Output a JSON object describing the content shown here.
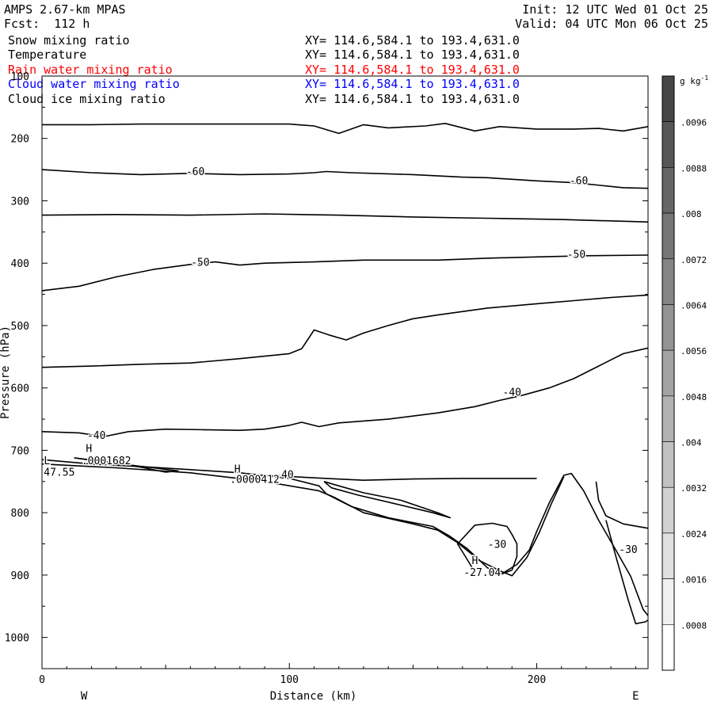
{
  "header": {
    "model": "AMPS 2.67-km MPAS",
    "forecast": "Fcst:  112 h",
    "init": "Init: 12 UTC Wed 01 Oct 25",
    "valid": "Valid: 04 UTC Mon 06 Oct 25"
  },
  "fields": [
    {
      "name": "Snow mixing ratio",
      "xy": "XY= 114.6,584.1 to 193.4,631.0",
      "color": "#000000"
    },
    {
      "name": "Temperature",
      "xy": "XY= 114.6,584.1 to 193.4,631.0",
      "color": "#000000"
    },
    {
      "name": "Rain water mixing ratio",
      "xy": "XY= 114.6,584.1 to 193.4,631.0",
      "color": "#ff0000"
    },
    {
      "name": "Cloud water mixing ratio",
      "xy": "XY= 114.6,584.1 to 193.4,631.0",
      "color": "#0000ff"
    },
    {
      "name": "Cloud ice mixing ratio",
      "xy": "XY= 114.6,584.1 to 193.4,631.0",
      "color": "#000000"
    }
  ],
  "chart_data": {
    "type": "cross-section contour",
    "xlabel": "Distance (km)",
    "ylabel": "Pressure (hPa)",
    "xlim": [
      0,
      245
    ],
    "ylim": [
      100,
      1050
    ],
    "x_ticks": [
      "0",
      "100",
      "200"
    ],
    "y_ticks": [
      "100",
      "200",
      "300",
      "400",
      "500",
      "600",
      "700",
      "800",
      "900",
      "1000"
    ],
    "x_tick_values": [
      0,
      100,
      200
    ],
    "y_tick_values": [
      100,
      200,
      300,
      400,
      500,
      600,
      700,
      800,
      900,
      1000
    ],
    "left_end_label": "W",
    "right_end_label": "E",
    "colorbar": {
      "unit": "g kg",
      "unit_exp": "-1",
      "labels": [
        ".0096",
        ".0088",
        ".008",
        ".0072",
        ".0064",
        ".0056",
        ".0048",
        ".004",
        ".0032",
        ".0024",
        ".0016",
        ".0008"
      ],
      "levels": [
        0.0096,
        0.0088,
        0.008,
        0.0072,
        0.0064,
        0.0056,
        0.0048,
        0.004,
        0.0032,
        0.0024,
        0.0016,
        0.0008
      ],
      "max": 0.0104
    },
    "temperature_contours": [
      {
        "id": "t-200",
        "points": [
          [
            0,
            178
          ],
          [
            20,
            178
          ],
          [
            40,
            177
          ],
          [
            60,
            177
          ],
          [
            80,
            177
          ],
          [
            100,
            177
          ],
          [
            110,
            180
          ],
          [
            120,
            192
          ],
          [
            130,
            178
          ],
          [
            140,
            183
          ],
          [
            155,
            180
          ],
          [
            163,
            176
          ],
          [
            175,
            188
          ],
          [
            185,
            181
          ],
          [
            200,
            185
          ],
          [
            215,
            185
          ],
          [
            225,
            184
          ],
          [
            235,
            188
          ],
          [
            245,
            181
          ]
        ]
      },
      {
        "id": "t-60",
        "points": [
          [
            0,
            250
          ],
          [
            20,
            255
          ],
          [
            40,
            258
          ],
          [
            60,
            256
          ],
          [
            80,
            258
          ],
          [
            100,
            257
          ],
          [
            110,
            255
          ],
          [
            115,
            253
          ],
          [
            125,
            255
          ],
          [
            150,
            258
          ],
          [
            170,
            262
          ],
          [
            180,
            263
          ],
          [
            200,
            268
          ],
          [
            215,
            271
          ],
          [
            235,
            279
          ],
          [
            245,
            280
          ]
        ]
      },
      {
        "id": "t-310",
        "points": [
          [
            0,
            323
          ],
          [
            30,
            322
          ],
          [
            60,
            323
          ],
          [
            90,
            321
          ],
          [
            120,
            323
          ],
          [
            150,
            326
          ],
          [
            180,
            328
          ],
          [
            210,
            330
          ],
          [
            245,
            334
          ]
        ]
      },
      {
        "id": "t-50",
        "points": [
          [
            0,
            444
          ],
          [
            15,
            437
          ],
          [
            30,
            422
          ],
          [
            45,
            410
          ],
          [
            60,
            402
          ],
          [
            70,
            398
          ],
          [
            80,
            403
          ],
          [
            90,
            400
          ],
          [
            110,
            398
          ],
          [
            130,
            395
          ],
          [
            160,
            395
          ],
          [
            180,
            392
          ],
          [
            200,
            390
          ],
          [
            220,
            388
          ],
          [
            245,
            387
          ]
        ]
      },
      {
        "id": "t-565",
        "points": [
          [
            0,
            567
          ],
          [
            20,
            565
          ],
          [
            40,
            562
          ],
          [
            60,
            560
          ],
          [
            80,
            553
          ],
          [
            100,
            545
          ],
          [
            105,
            537
          ],
          [
            110,
            507
          ],
          [
            116,
            515
          ],
          [
            123,
            523
          ],
          [
            130,
            512
          ],
          [
            140,
            500
          ],
          [
            150,
            489
          ],
          [
            160,
            483
          ],
          [
            180,
            472
          ],
          [
            200,
            465
          ],
          [
            215,
            460
          ],
          [
            230,
            455
          ],
          [
            245,
            451
          ]
        ]
      },
      {
        "id": "t-40",
        "points": [
          [
            0,
            670
          ],
          [
            15,
            672
          ],
          [
            25,
            678
          ],
          [
            35,
            670
          ],
          [
            50,
            666
          ],
          [
            65,
            667
          ],
          [
            80,
            668
          ],
          [
            90,
            666
          ],
          [
            100,
            660
          ],
          [
            105,
            655
          ],
          [
            112,
            662
          ],
          [
            120,
            656
          ],
          [
            140,
            650
          ],
          [
            160,
            640
          ],
          [
            175,
            630
          ],
          [
            185,
            620
          ],
          [
            195,
            611
          ],
          [
            205,
            600
          ],
          [
            215,
            585
          ],
          [
            225,
            565
          ],
          [
            235,
            545
          ],
          [
            245,
            536
          ]
        ]
      }
    ],
    "lower_contours": [
      {
        "id": "terrain-top",
        "points": [
          [
            0,
            715
          ],
          [
            20,
            722
          ],
          [
            40,
            726
          ],
          [
            60,
            731
          ],
          [
            80,
            736
          ],
          [
            100,
            745
          ],
          [
            112,
            757
          ],
          [
            115,
            770
          ],
          [
            125,
            790
          ],
          [
            140,
            808
          ],
          [
            158,
            822
          ],
          [
            165,
            838
          ],
          [
            172,
            858
          ],
          [
            180,
            888
          ],
          [
            185,
            900
          ],
          [
            192,
            883
          ],
          [
            197,
            860
          ],
          [
            200,
            830
          ],
          [
            205,
            785
          ],
          [
            211,
            740
          ],
          [
            214,
            737
          ],
          [
            219,
            765
          ],
          [
            225,
            812
          ],
          [
            232,
            860
          ],
          [
            238,
            902
          ],
          [
            243,
            955
          ],
          [
            245,
            965
          ]
        ]
      },
      {
        "id": "ground",
        "points": [
          [
            0,
            722
          ],
          [
            30,
            728
          ],
          [
            60,
            736
          ],
          [
            90,
            750
          ],
          [
            112,
            765
          ],
          [
            118,
            775
          ],
          [
            130,
            800
          ],
          [
            150,
            818
          ],
          [
            160,
            828
          ],
          [
            168,
            848
          ],
          [
            177,
            877
          ],
          [
            185,
            893
          ],
          [
            190,
            901
          ],
          [
            196,
            872
          ],
          [
            201,
            832
          ],
          [
            206,
            785
          ],
          [
            211,
            742
          ]
        ]
      },
      {
        "id": "minus30-left",
        "points": [
          [
            175,
            895
          ],
          [
            168,
            850
          ],
          [
            175,
            820
          ],
          [
            182,
            817
          ],
          [
            188,
            822
          ],
          [
            190,
            835
          ],
          [
            192,
            850
          ],
          [
            192,
            870
          ],
          [
            190,
            892
          ],
          [
            186,
            898
          ]
        ]
      },
      {
        "id": "minus40-level",
        "points": [
          [
            91,
            740
          ],
          [
            100,
            742
          ],
          [
            115,
            745
          ],
          [
            130,
            748
          ],
          [
            150,
            746
          ],
          [
            170,
            745
          ],
          [
            190,
            745
          ],
          [
            200,
            745
          ]
        ]
      },
      {
        "id": "minus30-right",
        "points": [
          [
            224,
            750
          ],
          [
            225,
            780
          ],
          [
            228,
            805
          ],
          [
            235,
            818
          ],
          [
            245,
            825
          ]
        ]
      },
      {
        "id": "basin-right",
        "points": [
          [
            228,
            812
          ],
          [
            232,
            870
          ],
          [
            237,
            940
          ],
          [
            240,
            978
          ],
          [
            244,
            975
          ],
          [
            245,
            972
          ]
        ]
      },
      {
        "id": "snow-sliver",
        "points": [
          [
            13,
            712
          ],
          [
            25,
            718
          ],
          [
            40,
            727
          ],
          [
            50,
            735
          ],
          [
            55,
            733
          ],
          [
            45,
            728
          ],
          [
            32,
            722
          ],
          [
            20,
            716
          ],
          [
            13,
            712
          ]
        ]
      },
      {
        "id": "foothill-fold",
        "points": [
          [
            114,
            750
          ],
          [
            120,
            757
          ],
          [
            130,
            768
          ],
          [
            145,
            780
          ],
          [
            160,
            800
          ],
          [
            165,
            808
          ],
          [
            158,
            800
          ],
          [
            142,
            785
          ],
          [
            128,
            772
          ],
          [
            117,
            760
          ],
          [
            114,
            750
          ]
        ]
      }
    ],
    "annotations": [
      {
        "text": "-60",
        "x": 62,
        "p": 254
      },
      {
        "text": "-60",
        "x": 217,
        "p": 269
      },
      {
        "text": "-50",
        "x": 64,
        "p": 400
      },
      {
        "text": "-50",
        "x": 216,
        "p": 387
      },
      {
        "text": "-40",
        "x": 190,
        "p": 608
      },
      {
        "text": "-40",
        "x": 22,
        "p": 677
      },
      {
        "text": "-40",
        "x": 98,
        "p": 740
      },
      {
        "text": "-30",
        "x": 184,
        "p": 852
      },
      {
        "text": "-30",
        "x": 237,
        "p": 860
      },
      {
        "text": "H",
        "x": 19,
        "p": 698
      },
      {
        "text": ".0001682",
        "x": 26,
        "p": 718
      },
      {
        "text": "L",
        "x": 2,
        "p": 718
      },
      {
        "text": "47.55",
        "x": 7,
        "p": 736
      },
      {
        "text": "H",
        "x": 79,
        "p": 731
      },
      {
        "text": ".0000412",
        "x": 86,
        "p": 748
      },
      {
        "text": "H",
        "x": 175,
        "p": 878
      },
      {
        "text": "-27.04",
        "x": 178,
        "p": 897
      }
    ]
  }
}
